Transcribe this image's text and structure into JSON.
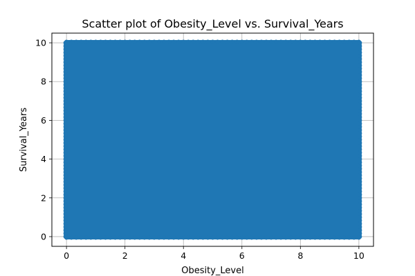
{
  "chart_data": {
    "type": "scatter",
    "title": "Scatter plot of Obesity_Level vs. Survival_Years",
    "xlabel": "Obesity_Level",
    "ylabel": "Survival_Years",
    "xlim": [
      -0.5,
      10.5
    ],
    "ylim": [
      -0.5,
      10.5
    ],
    "xticks": [
      0,
      2,
      4,
      6,
      8,
      10
    ],
    "yticks": [
      0,
      2,
      4,
      6,
      8,
      10
    ],
    "xtick_labels": [
      "0",
      "2",
      "4",
      "6",
      "8",
      "10"
    ],
    "ytick_labels": [
      "0",
      "2",
      "4",
      "6",
      "8",
      "10"
    ],
    "grid": true,
    "marker_color": "#1f77b4",
    "points_description": "dense uniform cloud covering x 0–10 and y 0–10",
    "x_range_covered": [
      0,
      10
    ],
    "y_range_covered": [
      0,
      10
    ]
  }
}
